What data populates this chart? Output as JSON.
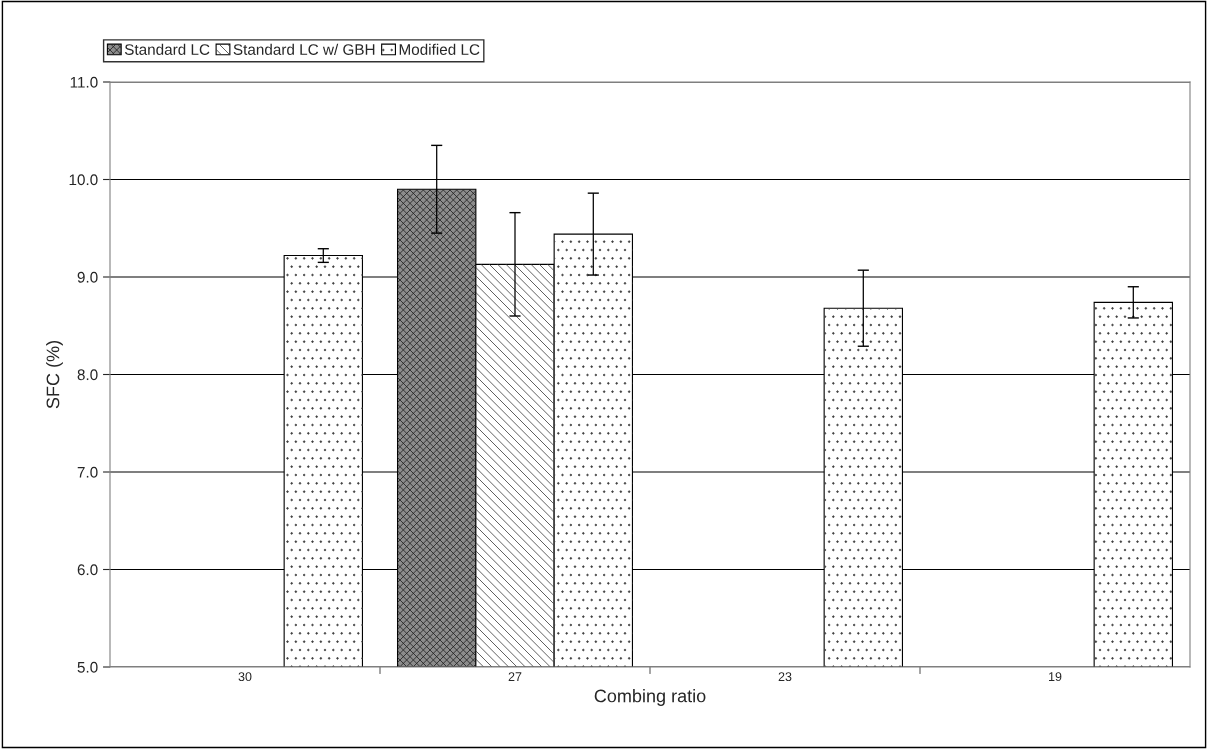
{
  "chart_data": {
    "type": "bar",
    "xlabel": "Combing ratio",
    "ylabel": "SFC (%)",
    "categories": [
      "30",
      "27",
      "23",
      "19"
    ],
    "series": [
      {
        "name": "Standard LC",
        "color": "#8c8c8c",
        "values": [
          null,
          9.9,
          null,
          null
        ],
        "errors": [
          null,
          0.45,
          null,
          null
        ]
      },
      {
        "name": "Standard LC w/ GBH",
        "color": "#ffffff",
        "values": [
          null,
          9.13,
          null,
          null
        ],
        "errors": [
          null,
          0.53,
          null,
          null
        ]
      },
      {
        "name": "Modified LC",
        "color": "#ffffff",
        "values": [
          9.22,
          9.44,
          8.68,
          8.74
        ],
        "errors": [
          0.07,
          0.42,
          0.39,
          0.16
        ]
      }
    ],
    "ylim": [
      5.0,
      11.0
    ],
    "yticks": [
      {
        "value": 5,
        "label": "5.0"
      },
      {
        "value": 6,
        "label": "6.0"
      },
      {
        "value": 7,
        "label": "7.0"
      },
      {
        "value": 8,
        "label": "8.0"
      },
      {
        "value": 9,
        "label": "9.0"
      },
      {
        "value": 10,
        "label": "10.0"
      },
      {
        "value": 11,
        "label": "11.0"
      }
    ],
    "grid": "y",
    "legend": "top left"
  }
}
